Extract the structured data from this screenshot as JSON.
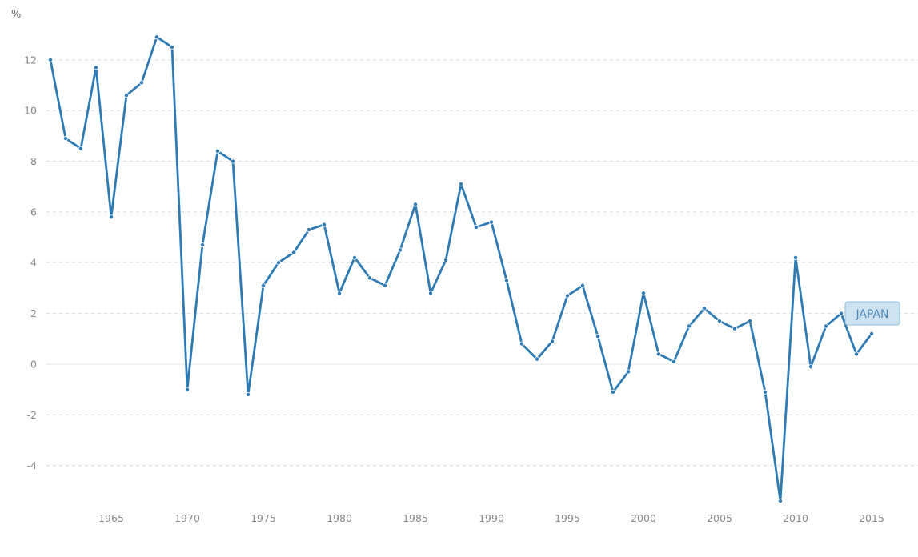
{
  "chart_data": {
    "type": "line",
    "ylabel": "%",
    "ylim": [
      -5.4,
      13.1
    ],
    "yticks": [
      12,
      10,
      8,
      6,
      4,
      2,
      0,
      -2,
      -4
    ],
    "xticks": [
      1965,
      1970,
      1975,
      1980,
      1985,
      1990,
      1995,
      2000,
      2005,
      2010,
      2015
    ],
    "xlim": [
      1961,
      2016
    ],
    "grid": true,
    "legend": "annotation at end of line",
    "series": [
      {
        "name": "JAPAN",
        "color": "#2e7bb4",
        "x": [
          1961,
          1962,
          1963,
          1964,
          1965,
          1966,
          1967,
          1968,
          1969,
          1970,
          1971,
          1972,
          1973,
          1974,
          1975,
          1976,
          1977,
          1978,
          1979,
          1980,
          1981,
          1982,
          1983,
          1984,
          1985,
          1986,
          1987,
          1988,
          1989,
          1990,
          1991,
          1992,
          1993,
          1994,
          1995,
          1996,
          1997,
          1998,
          1999,
          2000,
          2001,
          2002,
          2003,
          2004,
          2005,
          2006,
          2007,
          2008,
          2009,
          2010,
          2011,
          2012,
          2013,
          2014,
          2015
        ],
        "values": [
          12.0,
          8.9,
          8.5,
          11.7,
          5.8,
          10.6,
          11.1,
          12.9,
          12.5,
          -1.0,
          4.7,
          8.4,
          8.0,
          -1.2,
          3.1,
          4.0,
          4.4,
          5.3,
          5.5,
          2.8,
          4.2,
          3.4,
          3.1,
          4.5,
          6.3,
          2.8,
          4.1,
          7.1,
          5.4,
          5.6,
          3.3,
          0.8,
          0.2,
          0.9,
          2.7,
          3.1,
          1.1,
          -1.1,
          -0.3,
          2.8,
          0.4,
          0.1,
          1.5,
          2.2,
          1.7,
          1.4,
          1.7,
          -1.1,
          -5.4,
          4.2,
          -0.1,
          1.5,
          2.0,
          0.4,
          1.2
        ]
      }
    ]
  }
}
